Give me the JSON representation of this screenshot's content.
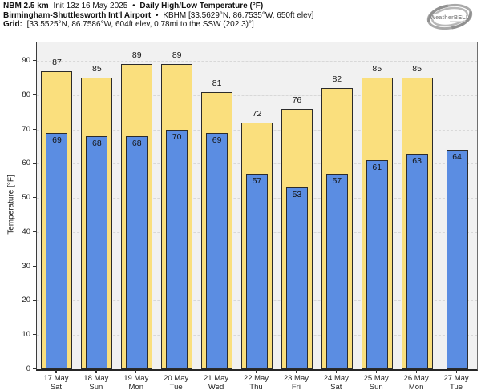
{
  "header": {
    "model": "NBM 2.5 km",
    "init": "Init 13z 16 May 2025",
    "bullet": "•",
    "product": "Daily High/Low Temperature (°F)",
    "station_name": "Birmingham-Shuttlesworth Int'l Airport",
    "station_info": "KBHM [33.5629°N, 86.7535°W, 650ft elev]",
    "grid_label": "Grid:",
    "grid_info": "[33.5525°N, 86.7586°W, 604ft elev, 0.78mi to the SSW (202.3)°]"
  },
  "logo": {
    "text": "WeatherBELL"
  },
  "chart_data": {
    "type": "bar",
    "title": "Daily High/Low Temperature (°F)",
    "ylabel": "Temperature [°F]",
    "ylim": [
      0,
      95.4
    ],
    "yticks": [
      0,
      10,
      20,
      30,
      40,
      50,
      60,
      70,
      80,
      90
    ],
    "grid": "horizontal-dashed",
    "legend": "none",
    "plot_bg": "#f1f1f1",
    "bar_edge_color": "#2b2b2b",
    "categories": [
      {
        "date": "17 May",
        "day": "Sat"
      },
      {
        "date": "18 May",
        "day": "Sun"
      },
      {
        "date": "19 May",
        "day": "Mon"
      },
      {
        "date": "20 May",
        "day": "Tue"
      },
      {
        "date": "21 May",
        "day": "Wed"
      },
      {
        "date": "22 May",
        "day": "Thu"
      },
      {
        "date": "23 May",
        "day": "Fri"
      },
      {
        "date": "24 May",
        "day": "Sat"
      },
      {
        "date": "25 May",
        "day": "Sun"
      },
      {
        "date": "26 May",
        "day": "Mon"
      },
      {
        "date": "27 May",
        "day": "Tue"
      }
    ],
    "series": [
      {
        "name": "High",
        "color": "#fadf7d",
        "values": [
          87,
          85,
          89,
          89,
          81,
          72,
          76,
          82,
          85,
          85,
          null
        ]
      },
      {
        "name": "Low",
        "color": "#5b8de2",
        "values": [
          69,
          68,
          68,
          70,
          69,
          57,
          53,
          57,
          61,
          63,
          64
        ]
      }
    ]
  }
}
